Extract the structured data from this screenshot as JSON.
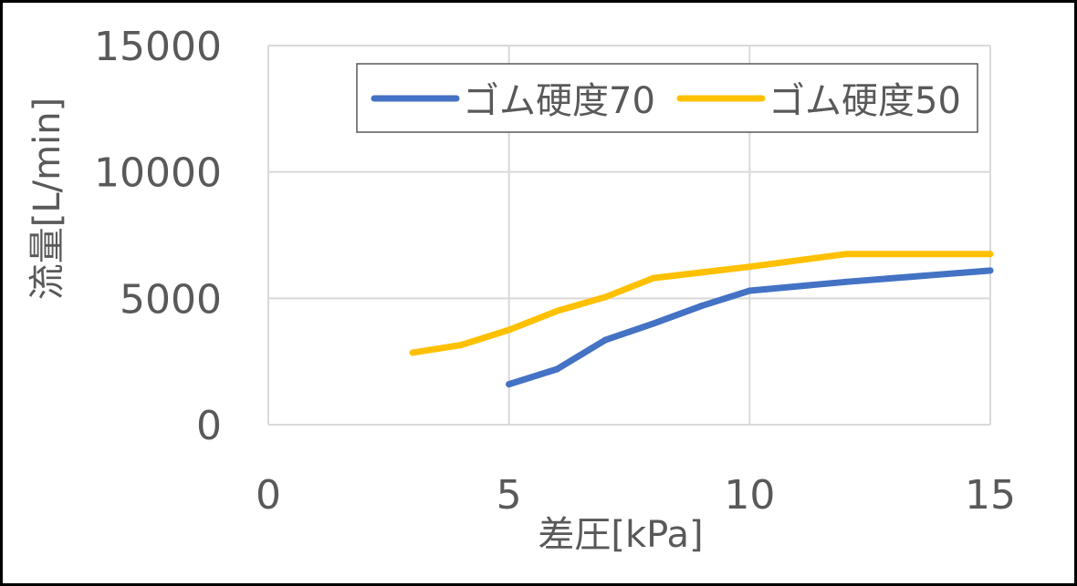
{
  "chart_data": {
    "type": "line",
    "title": "",
    "xlabel": "差圧[kPa]",
    "ylabel": "流量[L/min]",
    "xlim": [
      0,
      15
    ],
    "ylim": [
      0,
      15000
    ],
    "xticks": [
      "0",
      "5",
      "10",
      "15"
    ],
    "yticks": [
      "0",
      "5000",
      "10000",
      "15000"
    ],
    "grid": true,
    "legend_position": "top-right",
    "series": [
      {
        "name": "ゴム硬度70",
        "color": "#4472C4",
        "x": [
          5,
          6,
          7,
          8,
          9,
          10,
          12,
          15
        ],
        "y": [
          1600,
          2200,
          3350,
          4000,
          4700,
          5300,
          5650,
          6100
        ]
      },
      {
        "name": "ゴム硬度50",
        "color": "#FFC000",
        "x": [
          3,
          4,
          5,
          6,
          7,
          8,
          10,
          12,
          15
        ],
        "y": [
          2850,
          3150,
          3750,
          4500,
          5050,
          5800,
          6250,
          6750,
          6750
        ]
      }
    ]
  }
}
